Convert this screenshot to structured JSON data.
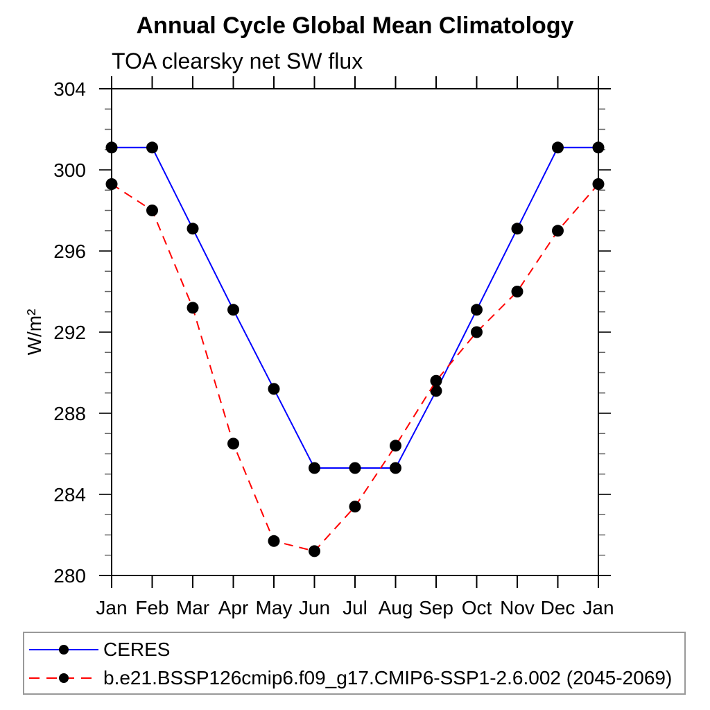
{
  "chart_data": {
    "type": "line",
    "title": "Annual Cycle Global Mean Climatology",
    "subtitle": "TOA clearsky net SW flux",
    "ylabel": "W/m²",
    "xlabel": "",
    "x_tick_labels": [
      "Jan",
      "Feb",
      "Mar",
      "Apr",
      "May",
      "Jun",
      "Jul",
      "Aug",
      "Sep",
      "Oct",
      "Nov",
      "Dec",
      "Jan"
    ],
    "ylim": [
      280,
      304
    ],
    "y_major_ticks": [
      280,
      284,
      288,
      292,
      296,
      300,
      304
    ],
    "y_minor_step": 1,
    "grid": false,
    "legend_position": "bottom-left-box",
    "series": [
      {
        "name": "CERES",
        "color": "#0000ff",
        "line_style": "solid",
        "marker": "filled-black-circle",
        "values": [
          301.1,
          301.1,
          297.1,
          293.1,
          289.2,
          285.3,
          285.3,
          285.3,
          289.1,
          293.1,
          297.1,
          301.1,
          301.1
        ]
      },
      {
        "name": "b.e21.BSSP126cmip6.f09_g17.CMIP6-SSP1-2.6.002 (2045-2069)",
        "color": "#ff0000",
        "line_style": "dashed",
        "marker": "filled-black-circle",
        "values": [
          299.3,
          298.0,
          293.2,
          286.5,
          281.7,
          281.2,
          283.4,
          286.4,
          289.6,
          292.0,
          294.0,
          297.0,
          299.3
        ]
      }
    ],
    "colors": {
      "frame": "#000000",
      "major_tick": "#333333",
      "minor_tick": "#666666",
      "marker": "#000000",
      "legend_border": "#999999",
      "background": "#ffffff"
    }
  }
}
